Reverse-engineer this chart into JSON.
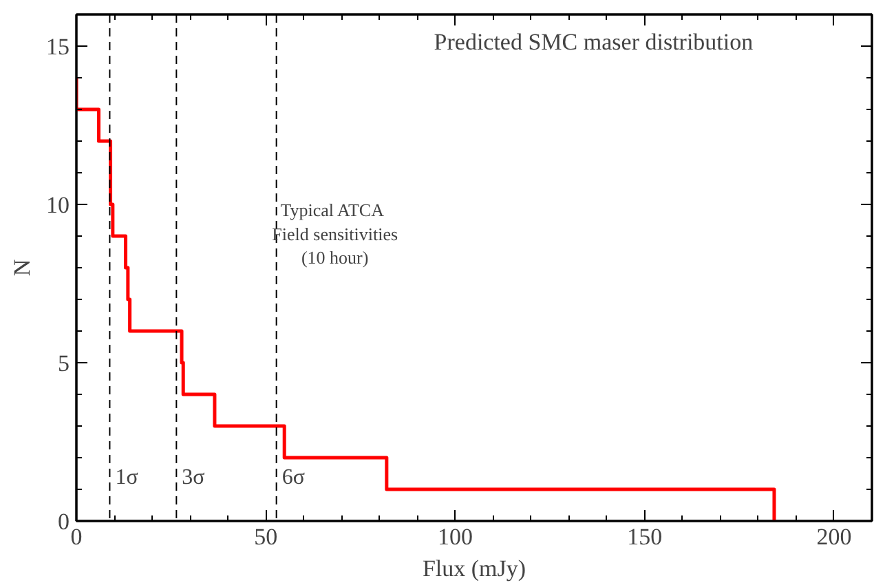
{
  "chart_data": {
    "type": "step",
    "title": "Predicted SMC maser distribution",
    "xlabel": "Flux (mJy)",
    "ylabel": "N",
    "x": [
      0,
      0,
      5.9,
      9.0,
      9.6,
      13.0,
      13.6,
      14.1,
      27.8,
      28.2,
      36.5,
      54.9,
      81.9,
      184.2
    ],
    "series": [
      {
        "color": "#ff0000",
        "values": [
          14,
          13,
          12,
          10,
          9,
          8,
          7,
          6,
          5,
          4,
          3,
          2,
          1,
          0
        ]
      }
    ],
    "xlim": [
      0,
      210
    ],
    "ylim": [
      0,
      16
    ],
    "xticks": [
      0,
      50,
      100,
      150,
      200
    ],
    "yticks": [
      0,
      5,
      10,
      15
    ],
    "grid": false,
    "ref_lines": [
      {
        "axis": "x",
        "value": 8.8,
        "label": "1σ",
        "color": "#000000",
        "line_style": "dashed"
      },
      {
        "axis": "x",
        "value": 26.4,
        "label": "3σ",
        "color": "#000000",
        "line_style": "dashed"
      },
      {
        "axis": "x",
        "value": 52.8,
        "label": "6σ",
        "color": "#000000",
        "line_style": "dashed"
      }
    ],
    "annotations": [
      "Typical  ATCA\nField sensitivities\n(10 hour)"
    ]
  }
}
